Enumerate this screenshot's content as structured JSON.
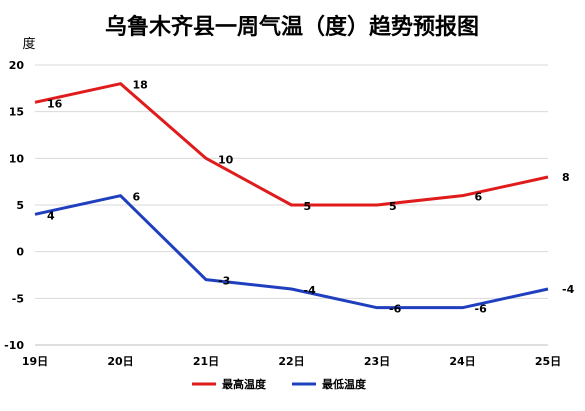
{
  "chart_data": {
    "type": "line",
    "title": "乌鲁木齐县一周气温（度）趋势预报图",
    "ylabel": "度",
    "xlabel": "",
    "categories": [
      "19日",
      "20日",
      "21日",
      "22日",
      "23日",
      "24日",
      "25日"
    ],
    "ylim": [
      -10,
      20
    ],
    "yticks": [
      "20",
      "15",
      "10",
      "5",
      "0",
      "-5",
      "-10"
    ],
    "grid": true,
    "legend_position": "bottom",
    "series": [
      {
        "name": "最高温度",
        "color": "#e01b1b",
        "values": [
          16,
          18,
          10,
          5,
          5,
          6,
          8
        ]
      },
      {
        "name": "最低温度",
        "color": "#1f3fbf",
        "values": [
          4,
          6,
          -3,
          -4,
          -6,
          -6,
          -4
        ]
      }
    ]
  }
}
